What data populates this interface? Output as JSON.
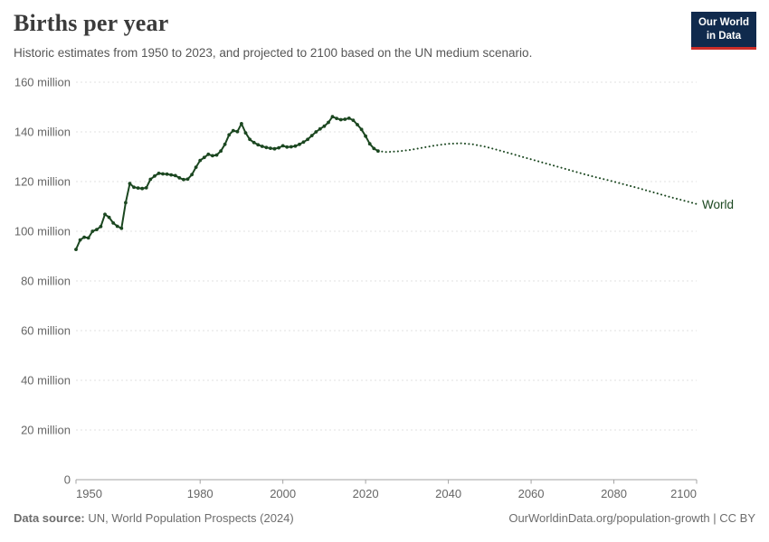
{
  "header": {
    "title": "Births per year",
    "subtitle": "Historic estimates from 1950 to 2023, and projected to 2100 based on the UN medium scenario.",
    "logo": {
      "line1": "Our World",
      "line2": "in Data"
    }
  },
  "footer": {
    "source_label": "Data source:",
    "source_text": " UN, World Population Prospects (2024)",
    "link_text": "OurWorldinData.org/population-growth | CC BY"
  },
  "colors": {
    "series": "#1b4720",
    "grid": "#e0e0e0",
    "axis": "#a3a3a3",
    "tick_text": "#666666",
    "logo_bg": "#102a4d",
    "logo_accent": "#cd2d28"
  },
  "chart_data": {
    "type": "line",
    "title": "Births per year",
    "entity_label": "World",
    "unit": "births per year (millions)",
    "legend_position": "end-of-line-label",
    "grid": true,
    "x_axis": {
      "min": 1950,
      "max": 2100,
      "tick_values": [
        1950,
        1980,
        2000,
        2020,
        2040,
        2060,
        2080,
        2100
      ],
      "tick_labels": [
        "1950",
        "1980",
        "2000",
        "2020",
        "2040",
        "2060",
        "2080",
        "2100"
      ]
    },
    "y_axis": {
      "min": 0,
      "max": 160,
      "tick_values": [
        0,
        20,
        40,
        60,
        80,
        100,
        120,
        140,
        160
      ],
      "tick_labels": [
        "0",
        "20 million",
        "40 million",
        "60 million",
        "80 million",
        "100 million",
        "120 million",
        "140 million",
        "160 million"
      ]
    },
    "series": [
      {
        "name": "World — historic estimates",
        "style": "solid",
        "markers": true,
        "years": [
          1950,
          1951,
          1952,
          1953,
          1954,
          1955,
          1956,
          1957,
          1958,
          1959,
          1960,
          1961,
          1962,
          1963,
          1964,
          1965,
          1966,
          1967,
          1968,
          1969,
          1970,
          1971,
          1972,
          1973,
          1974,
          1975,
          1976,
          1977,
          1978,
          1979,
          1980,
          1981,
          1982,
          1983,
          1984,
          1985,
          1986,
          1987,
          1988,
          1989,
          1990,
          1991,
          1992,
          1993,
          1994,
          1995,
          1996,
          1997,
          1998,
          1999,
          2000,
          2001,
          2002,
          2003,
          2004,
          2005,
          2006,
          2007,
          2008,
          2009,
          2010,
          2011,
          2012,
          2013,
          2014,
          2015,
          2016,
          2017,
          2018,
          2019,
          2020,
          2021,
          2022,
          2023
        ],
        "values": [
          92.7,
          96.5,
          97.6,
          97.3,
          100.0,
          100.7,
          101.9,
          106.8,
          105.6,
          103.3,
          102.0,
          101.2,
          111.5,
          119.2,
          117.7,
          117.4,
          117.2,
          117.5,
          120.9,
          122.2,
          123.3,
          123.1,
          123.0,
          122.7,
          122.4,
          121.5,
          120.8,
          121.0,
          122.8,
          125.8,
          128.5,
          129.7,
          131.0,
          130.4,
          130.7,
          132.3,
          135.0,
          138.8,
          140.5,
          140.1,
          143.3,
          139.6,
          137.0,
          135.7,
          134.8,
          134.2,
          133.7,
          133.4,
          133.2,
          133.6,
          134.4,
          133.9,
          134.0,
          134.3,
          135.0,
          135.9,
          137.0,
          138.5,
          140.0,
          141.2,
          142.3,
          143.8,
          146.1,
          145.4,
          144.9,
          145.1,
          145.5,
          144.7,
          142.9,
          141.0,
          138.3,
          135.2,
          133.3,
          132.3
        ]
      },
      {
        "name": "World — UN medium scenario projection",
        "style": "dotted",
        "markers": false,
        "years": [
          2023,
          2025,
          2028,
          2031,
          2034,
          2037,
          2040,
          2043,
          2046,
          2049,
          2052,
          2055,
          2058,
          2061,
          2064,
          2067,
          2070,
          2073,
          2076,
          2079,
          2082,
          2085,
          2088,
          2091,
          2094,
          2097,
          2100
        ],
        "values": [
          132.3,
          131.9,
          132.2,
          132.8,
          133.7,
          134.6,
          135.2,
          135.4,
          135.0,
          134.0,
          132.7,
          131.3,
          129.9,
          128.5,
          127.1,
          125.7,
          124.3,
          122.9,
          121.6,
          120.4,
          119.1,
          117.8,
          116.4,
          115.0,
          113.6,
          112.3,
          111.0
        ]
      }
    ]
  }
}
